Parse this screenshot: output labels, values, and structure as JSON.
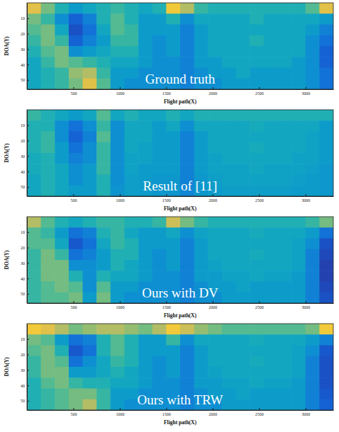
{
  "chart_data": [
    {
      "type": "heatmap",
      "annotation": "Ground truth",
      "x_label": "Flight path(X)",
      "y_label": "DOA(Y)",
      "x": [
        75,
        225,
        375,
        525,
        675,
        825,
        975,
        1125,
        1275,
        1425,
        1575,
        1725,
        1875,
        2025,
        2175,
        2325,
        2475,
        2625,
        2775,
        2925,
        3075,
        3225
      ],
      "y": [
        3.5,
        10.5,
        17.5,
        24.5,
        31.5,
        38.5,
        45.5,
        52.5
      ],
      "xlim": [
        0,
        3300
      ],
      "ylim": [
        0,
        56
      ],
      "xticks": [
        500,
        1000,
        1500,
        2000,
        2500,
        3000
      ],
      "yticks": [
        10,
        20,
        30,
        40,
        50
      ],
      "zlim": [
        0,
        1
      ],
      "values": [
        [
          0.8,
          0.6,
          0.45,
          0.35,
          0.4,
          0.45,
          0.5,
          0.45,
          0.4,
          0.45,
          0.85,
          0.7,
          0.5,
          0.45,
          0.45,
          0.45,
          0.45,
          0.45,
          0.45,
          0.45,
          0.55,
          0.8
        ],
        [
          0.6,
          0.5,
          0.3,
          0.15,
          0.25,
          0.45,
          0.55,
          0.45,
          0.35,
          0.35,
          0.45,
          0.3,
          0.4,
          0.4,
          0.4,
          0.4,
          0.45,
          0.4,
          0.4,
          0.4,
          0.4,
          0.35
        ],
        [
          0.55,
          0.6,
          0.4,
          0.1,
          0.2,
          0.4,
          0.55,
          0.5,
          0.35,
          0.35,
          0.35,
          0.25,
          0.35,
          0.4,
          0.4,
          0.4,
          0.4,
          0.4,
          0.4,
          0.4,
          0.35,
          0.25
        ],
        [
          0.5,
          0.6,
          0.5,
          0.15,
          0.25,
          0.35,
          0.5,
          0.5,
          0.35,
          0.3,
          0.35,
          0.25,
          0.35,
          0.4,
          0.4,
          0.4,
          0.45,
          0.4,
          0.4,
          0.4,
          0.3,
          0.2
        ],
        [
          0.45,
          0.55,
          0.6,
          0.3,
          0.35,
          0.4,
          0.45,
          0.45,
          0.35,
          0.3,
          0.35,
          0.25,
          0.35,
          0.4,
          0.4,
          0.4,
          0.4,
          0.4,
          0.4,
          0.4,
          0.3,
          0.15
        ],
        [
          0.4,
          0.5,
          0.6,
          0.55,
          0.5,
          0.45,
          0.4,
          0.4,
          0.35,
          0.3,
          0.3,
          0.25,
          0.35,
          0.35,
          0.4,
          0.4,
          0.4,
          0.4,
          0.4,
          0.35,
          0.3,
          0.15
        ],
        [
          0.4,
          0.45,
          0.5,
          0.65,
          0.7,
          0.5,
          0.35,
          0.35,
          0.3,
          0.3,
          0.3,
          0.25,
          0.3,
          0.35,
          0.35,
          0.4,
          0.35,
          0.35,
          0.35,
          0.35,
          0.3,
          0.2
        ],
        [
          0.4,
          0.45,
          0.5,
          0.6,
          0.8,
          0.55,
          0.35,
          0.3,
          0.3,
          0.3,
          0.3,
          0.25,
          0.3,
          0.3,
          0.35,
          0.35,
          0.35,
          0.35,
          0.35,
          0.35,
          0.3,
          0.2
        ]
      ]
    },
    {
      "type": "heatmap",
      "annotation": "Result of [11]",
      "x_label": "Flight path(X)",
      "y_label": "DOA(Y)",
      "x": [
        75,
        225,
        375,
        525,
        675,
        825,
        975,
        1125,
        1275,
        1425,
        1575,
        1725,
        1875,
        2025,
        2175,
        2325,
        2475,
        2625,
        2775,
        2925,
        3075,
        3225
      ],
      "y": [
        3.5,
        10.5,
        17.5,
        24.5,
        31.5,
        38.5,
        45.5,
        52.5
      ],
      "xlim": [
        0,
        3300
      ],
      "ylim": [
        0,
        56
      ],
      "xticks": [
        500,
        1000,
        1500,
        2000,
        2500,
        3000
      ],
      "yticks": [
        10,
        20,
        30,
        40,
        50
      ],
      "zlim": [
        0,
        1
      ],
      "values": [
        [
          0.5,
          0.45,
          0.4,
          0.35,
          0.4,
          0.55,
          0.4,
          0.45,
          0.4,
          0.4,
          0.45,
          0.4,
          0.45,
          0.45,
          0.45,
          0.45,
          0.45,
          0.45,
          0.45,
          0.45,
          0.45,
          0.45
        ],
        [
          0.45,
          0.45,
          0.3,
          0.2,
          0.3,
          0.5,
          0.3,
          0.4,
          0.4,
          0.35,
          0.4,
          0.3,
          0.4,
          0.4,
          0.4,
          0.4,
          0.42,
          0.4,
          0.4,
          0.4,
          0.4,
          0.35
        ],
        [
          0.45,
          0.5,
          0.3,
          0.15,
          0.25,
          0.55,
          0.3,
          0.4,
          0.4,
          0.35,
          0.35,
          0.25,
          0.35,
          0.4,
          0.4,
          0.4,
          0.4,
          0.4,
          0.4,
          0.4,
          0.38,
          0.35
        ],
        [
          0.45,
          0.5,
          0.35,
          0.2,
          0.3,
          0.5,
          0.3,
          0.4,
          0.38,
          0.35,
          0.35,
          0.25,
          0.35,
          0.4,
          0.4,
          0.4,
          0.42,
          0.4,
          0.4,
          0.4,
          0.38,
          0.35
        ],
        [
          0.42,
          0.45,
          0.35,
          0.25,
          0.3,
          0.5,
          0.3,
          0.38,
          0.38,
          0.35,
          0.35,
          0.25,
          0.35,
          0.38,
          0.4,
          0.4,
          0.4,
          0.4,
          0.4,
          0.38,
          0.38,
          0.35
        ],
        [
          0.42,
          0.45,
          0.4,
          0.3,
          0.35,
          0.5,
          0.3,
          0.38,
          0.35,
          0.35,
          0.35,
          0.25,
          0.35,
          0.38,
          0.38,
          0.38,
          0.4,
          0.38,
          0.38,
          0.38,
          0.36,
          0.33
        ],
        [
          0.4,
          0.45,
          0.4,
          0.3,
          0.35,
          0.45,
          0.3,
          0.36,
          0.35,
          0.33,
          0.33,
          0.25,
          0.33,
          0.36,
          0.38,
          0.38,
          0.38,
          0.38,
          0.38,
          0.36,
          0.35,
          0.33
        ],
        [
          0.4,
          0.45,
          0.4,
          0.35,
          0.35,
          0.45,
          0.32,
          0.36,
          0.35,
          0.33,
          0.33,
          0.27,
          0.33,
          0.35,
          0.36,
          0.36,
          0.36,
          0.36,
          0.36,
          0.35,
          0.35,
          0.33
        ]
      ]
    },
    {
      "type": "heatmap",
      "annotation": "Ours with DV",
      "x_label": "Flight path(X)",
      "y_label": "DOA(Y)",
      "x": [
        75,
        225,
        375,
        525,
        675,
        825,
        975,
        1125,
        1275,
        1425,
        1575,
        1725,
        1875,
        2025,
        2175,
        2325,
        2475,
        2625,
        2775,
        2925,
        3075,
        3225
      ],
      "y": [
        3.5,
        10.5,
        17.5,
        24.5,
        31.5,
        38.5,
        45.5,
        52.5
      ],
      "xlim": [
        0,
        3300
      ],
      "ylim": [
        0,
        56
      ],
      "xticks": [
        500,
        1000,
        1500,
        2000,
        2500,
        3000
      ],
      "yticks": [
        10,
        20,
        30,
        40,
        50
      ],
      "zlim": [
        0,
        1
      ],
      "values": [
        [
          0.7,
          0.55,
          0.45,
          0.4,
          0.45,
          0.5,
          0.5,
          0.45,
          0.45,
          0.5,
          0.75,
          0.6,
          0.5,
          0.45,
          0.45,
          0.45,
          0.45,
          0.45,
          0.45,
          0.45,
          0.5,
          0.6
        ],
        [
          0.55,
          0.5,
          0.35,
          0.2,
          0.25,
          0.45,
          0.5,
          0.4,
          0.35,
          0.35,
          0.4,
          0.3,
          0.38,
          0.4,
          0.4,
          0.4,
          0.42,
          0.4,
          0.4,
          0.4,
          0.35,
          0.2
        ],
        [
          0.55,
          0.55,
          0.4,
          0.12,
          0.2,
          0.4,
          0.5,
          0.45,
          0.35,
          0.35,
          0.35,
          0.25,
          0.35,
          0.4,
          0.4,
          0.4,
          0.4,
          0.4,
          0.4,
          0.38,
          0.3,
          0.1
        ],
        [
          0.5,
          0.6,
          0.5,
          0.2,
          0.25,
          0.35,
          0.45,
          0.45,
          0.35,
          0.3,
          0.35,
          0.25,
          0.35,
          0.4,
          0.4,
          0.4,
          0.42,
          0.4,
          0.4,
          0.38,
          0.25,
          0.08
        ],
        [
          0.5,
          0.6,
          0.6,
          0.3,
          0.3,
          0.35,
          0.45,
          0.4,
          0.35,
          0.3,
          0.35,
          0.25,
          0.35,
          0.38,
          0.4,
          0.4,
          0.4,
          0.4,
          0.4,
          0.38,
          0.25,
          0.06
        ],
        [
          0.5,
          0.6,
          0.6,
          0.45,
          0.3,
          0.45,
          0.4,
          0.4,
          0.35,
          0.3,
          0.3,
          0.25,
          0.35,
          0.35,
          0.38,
          0.38,
          0.4,
          0.38,
          0.38,
          0.35,
          0.25,
          0.06
        ],
        [
          0.5,
          0.55,
          0.6,
          0.55,
          0.3,
          0.55,
          0.35,
          0.35,
          0.3,
          0.3,
          0.3,
          0.25,
          0.3,
          0.35,
          0.35,
          0.38,
          0.35,
          0.35,
          0.35,
          0.35,
          0.25,
          0.08
        ],
        [
          0.5,
          0.55,
          0.55,
          0.6,
          0.35,
          0.6,
          0.35,
          0.3,
          0.3,
          0.3,
          0.3,
          0.25,
          0.3,
          0.3,
          0.35,
          0.35,
          0.35,
          0.35,
          0.35,
          0.35,
          0.25,
          0.1
        ]
      ]
    },
    {
      "type": "heatmap",
      "annotation": "Ours with TRW",
      "x_label": "Flight path(X)",
      "y_label": "DOA(Y)",
      "x": [
        75,
        225,
        375,
        525,
        675,
        825,
        975,
        1125,
        1275,
        1425,
        1575,
        1725,
        1875,
        2025,
        2175,
        2325,
        2475,
        2625,
        2775,
        2925,
        3075,
        3225
      ],
      "y": [
        3.5,
        10.5,
        17.5,
        24.5,
        31.5,
        38.5,
        45.5,
        52.5
      ],
      "xlim": [
        0,
        3300
      ],
      "ylim": [
        0,
        56
      ],
      "xticks": [
        500,
        1000,
        1500,
        2000,
        2500,
        3000
      ],
      "yticks": [
        10,
        20,
        30,
        40,
        50
      ],
      "zlim": [
        0,
        1
      ],
      "values": [
        [
          0.85,
          0.8,
          0.7,
          0.6,
          0.65,
          0.7,
          0.7,
          0.65,
          0.6,
          0.7,
          0.85,
          0.75,
          0.65,
          0.6,
          0.55,
          0.55,
          0.55,
          0.55,
          0.55,
          0.55,
          0.6,
          0.85
        ],
        [
          0.6,
          0.55,
          0.35,
          0.2,
          0.25,
          0.45,
          0.55,
          0.45,
          0.35,
          0.35,
          0.5,
          0.3,
          0.4,
          0.4,
          0.4,
          0.4,
          0.42,
          0.4,
          0.4,
          0.4,
          0.35,
          0.25
        ],
        [
          0.55,
          0.6,
          0.45,
          0.12,
          0.2,
          0.45,
          0.55,
          0.45,
          0.35,
          0.35,
          0.35,
          0.25,
          0.35,
          0.4,
          0.4,
          0.4,
          0.4,
          0.4,
          0.4,
          0.38,
          0.3,
          0.12
        ],
        [
          0.5,
          0.6,
          0.55,
          0.2,
          0.3,
          0.4,
          0.5,
          0.45,
          0.35,
          0.3,
          0.35,
          0.25,
          0.35,
          0.4,
          0.4,
          0.4,
          0.42,
          0.4,
          0.4,
          0.38,
          0.25,
          0.1
        ],
        [
          0.5,
          0.6,
          0.6,
          0.35,
          0.35,
          0.4,
          0.45,
          0.4,
          0.35,
          0.3,
          0.35,
          0.25,
          0.35,
          0.38,
          0.4,
          0.4,
          0.4,
          0.4,
          0.4,
          0.38,
          0.25,
          0.1
        ],
        [
          0.45,
          0.55,
          0.6,
          0.5,
          0.45,
          0.45,
          0.4,
          0.4,
          0.35,
          0.3,
          0.3,
          0.25,
          0.35,
          0.35,
          0.38,
          0.38,
          0.4,
          0.38,
          0.38,
          0.35,
          0.25,
          0.1
        ],
        [
          0.45,
          0.5,
          0.55,
          0.6,
          0.6,
          0.5,
          0.35,
          0.35,
          0.3,
          0.3,
          0.3,
          0.25,
          0.3,
          0.35,
          0.35,
          0.38,
          0.35,
          0.35,
          0.35,
          0.35,
          0.25,
          0.12
        ],
        [
          0.45,
          0.5,
          0.55,
          0.6,
          0.7,
          0.5,
          0.35,
          0.3,
          0.3,
          0.3,
          0.3,
          0.25,
          0.3,
          0.3,
          0.35,
          0.35,
          0.35,
          0.35,
          0.35,
          0.35,
          0.25,
          0.15
        ]
      ]
    }
  ]
}
